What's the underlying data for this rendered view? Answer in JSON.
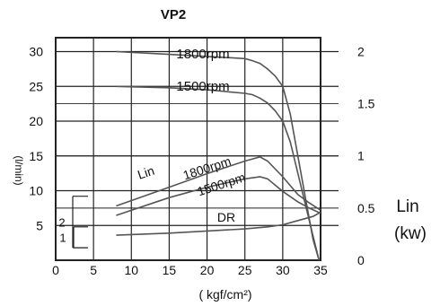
{
  "chart_data": {
    "type": "line",
    "title": "VP2",
    "xlabel": "( kgf/cm²)",
    "ylabel": "(l/min)",
    "y2label_top": "Lin",
    "y2label_bottom": "(kw)",
    "xlim": [
      0,
      35
    ],
    "ylim": [
      0,
      32
    ],
    "y2lim": [
      0,
      2.133
    ],
    "x_ticks": [
      "0",
      "5",
      "10",
      "15",
      "20",
      "25",
      "30",
      "35"
    ],
    "y_ticks": [
      "5",
      "10",
      "15",
      "20",
      "25",
      "30"
    ],
    "y2_ticks": [
      "0",
      "0.5",
      "1",
      "1.5",
      "2"
    ],
    "grid": true,
    "colors": {
      "axis": "#222222",
      "grid": "#222222",
      "curve": "#555555",
      "text": "#111111"
    },
    "series": [
      {
        "name": "1800rpm",
        "axis": "flow",
        "x": [
          8,
          15,
          20,
          25,
          26,
          27,
          28,
          29,
          30,
          31,
          32,
          33,
          34,
          34.8
        ],
        "y": [
          30,
          29.6,
          29.3,
          29,
          28.7,
          28.3,
          27.5,
          26.5,
          25,
          21,
          15,
          9,
          3,
          0
        ]
      },
      {
        "name": "1500rpm",
        "axis": "flow",
        "x": [
          8,
          15,
          20,
          25,
          26,
          27,
          28,
          29,
          30,
          31,
          32,
          33,
          34,
          34.8
        ],
        "y": [
          25,
          24.8,
          24.5,
          24,
          23.8,
          23.3,
          22.6,
          21.5,
          20,
          17,
          12.5,
          8,
          3.5,
          0
        ]
      },
      {
        "name": "Lin 1800rpm",
        "axis": "power",
        "x": [
          8,
          15,
          20,
          25,
          27,
          28,
          30,
          32,
          33.5,
          35
        ],
        "y": [
          0.52,
          0.7,
          0.83,
          0.95,
          0.99,
          0.95,
          0.8,
          0.63,
          0.55,
          0.48
        ]
      },
      {
        "name": "1500rpm",
        "axis": "power",
        "x": [
          8,
          15,
          20,
          25,
          27,
          28,
          30,
          32,
          33.5,
          35
        ],
        "y": [
          0.43,
          0.6,
          0.7,
          0.78,
          0.8,
          0.78,
          0.66,
          0.56,
          0.5,
          0.45
        ]
      },
      {
        "name": "DR",
        "axis": "power",
        "x": [
          8,
          15,
          20,
          25,
          28,
          30,
          32,
          34,
          35
        ],
        "y": [
          0.24,
          0.26,
          0.28,
          0.3,
          0.32,
          0.34,
          0.38,
          0.42,
          0.46
        ]
      }
    ],
    "annotations": [
      {
        "text": "1800rpm",
        "target": "1800rpm"
      },
      {
        "text": "1500rpm",
        "target": "1500rpm"
      },
      {
        "text": "Lin",
        "target": "Lin 1800rpm"
      },
      {
        "text": "1800rpm",
        "target": "Lin 1800rpm"
      },
      {
        "text": "1500rpm",
        "target": "Lin 1500rpm"
      },
      {
        "text": "DR",
        "target": "DR"
      }
    ],
    "side_brackets": [
      {
        "label": "2",
        "from": 1.8,
        "to": 9.2
      },
      {
        "label": "1",
        "from": 1.8,
        "to": 4.8
      }
    ]
  }
}
